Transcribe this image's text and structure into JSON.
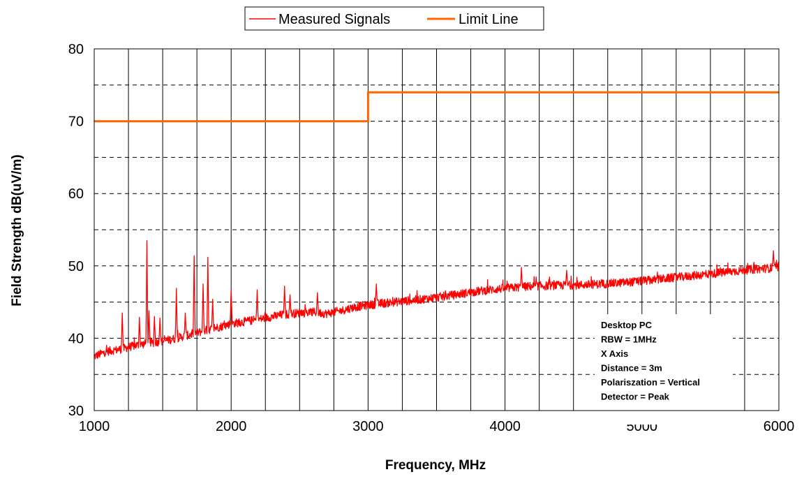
{
  "chart_data": {
    "type": "line",
    "xlabel": "Frequency,  MHz",
    "ylabel": "Field Strength dB(uV/m)",
    "xlim": [
      1000,
      6000
    ],
    "ylim": [
      30,
      80
    ],
    "x_ticks": [
      1000,
      2000,
      3000,
      4000,
      5000,
      6000
    ],
    "y_ticks": [
      30,
      40,
      50,
      60,
      70,
      80
    ],
    "grid": true,
    "legend_position": "top",
    "series": [
      {
        "name": "Measured Signals",
        "color": "#ff0000",
        "noise_amplitude": 0.6,
        "x": [
          1000,
          1100,
          1200,
          1300,
          1400,
          1500,
          1600,
          1700,
          1800,
          1900,
          2000,
          2100,
          2200,
          2300,
          2400,
          2500,
          2600,
          2700,
          2800,
          2900,
          3000,
          3200,
          3400,
          3600,
          3800,
          4000,
          4200,
          4400,
          4600,
          4800,
          5000,
          5200,
          5400,
          5600,
          5800,
          6000
        ],
        "y": [
          37.5,
          38.2,
          38.5,
          39.0,
          39.3,
          39.6,
          40.0,
          40.5,
          41.0,
          41.5,
          42.0,
          42.3,
          42.6,
          43.0,
          43.3,
          43.5,
          43.6,
          43.4,
          43.8,
          44.3,
          44.6,
          45.0,
          45.4,
          45.9,
          46.5,
          46.9,
          47.2,
          47.3,
          47.4,
          47.6,
          47.9,
          48.3,
          48.7,
          49.1,
          49.5,
          49.8
        ],
        "peaks": [
          {
            "x": 1205,
            "y": 43.5
          },
          {
            "x": 1330,
            "y": 42.9
          },
          {
            "x": 1385,
            "y": 53.5
          },
          {
            "x": 1400,
            "y": 43.8
          },
          {
            "x": 1440,
            "y": 43.0
          },
          {
            "x": 1480,
            "y": 42.8
          },
          {
            "x": 1600,
            "y": 46.9
          },
          {
            "x": 1665,
            "y": 43.5
          },
          {
            "x": 1730,
            "y": 51.4
          },
          {
            "x": 1795,
            "y": 47.5
          },
          {
            "x": 1830,
            "y": 51.2
          },
          {
            "x": 1865,
            "y": 45.4
          },
          {
            "x": 2000,
            "y": 46.8
          },
          {
            "x": 2190,
            "y": 46.7
          },
          {
            "x": 2390,
            "y": 47.2
          },
          {
            "x": 2430,
            "y": 46.0
          },
          {
            "x": 2630,
            "y": 46.3
          },
          {
            "x": 3060,
            "y": 47.5
          },
          {
            "x": 4120,
            "y": 49.8
          },
          {
            "x": 4450,
            "y": 49.4
          },
          {
            "x": 5960,
            "y": 52.1
          }
        ]
      },
      {
        "name": "Limit Line",
        "color": "#ff6600",
        "x": [
          1000,
          3000,
          3000,
          6000
        ],
        "y": [
          70,
          70,
          74,
          74
        ]
      }
    ],
    "annotation_lines": [
      "Desktop PC",
      "RBW = 1MHz",
      "X Axis",
      "Distance = 3m",
      "Polariszation = Vertical",
      "Detector = Peak"
    ]
  }
}
